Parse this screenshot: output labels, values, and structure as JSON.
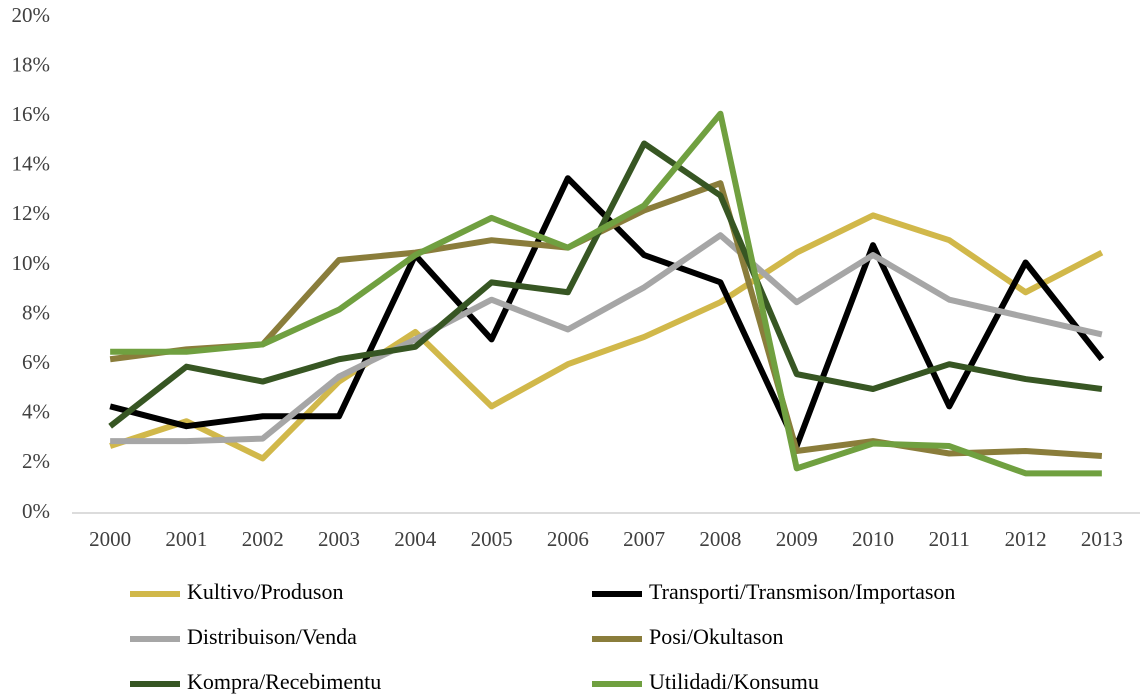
{
  "chart_data": {
    "type": "line",
    "categories": [
      "2000",
      "2001",
      "2002",
      "2003",
      "2004",
      "2005",
      "2006",
      "2007",
      "2008",
      "2009",
      "2010",
      "2011",
      "2012",
      "2013"
    ],
    "series": [
      {
        "name": "Kultivo/Produson",
        "color": "#d1b84a",
        "values": [
          2.7,
          3.7,
          2.2,
          5.3,
          7.3,
          4.3,
          6.0,
          7.1,
          8.5,
          10.5,
          12.0,
          11.0,
          8.9,
          10.5
        ]
      },
      {
        "name": "Transporti/Transmison/Importason",
        "color": "#000000",
        "values": [
          4.3,
          3.5,
          3.9,
          3.9,
          10.4,
          7.0,
          13.5,
          10.4,
          9.3,
          2.7,
          10.8,
          4.3,
          10.1,
          6.2
        ]
      },
      {
        "name": "Distribuison/Venda",
        "color": "#a6a6a6",
        "values": [
          2.9,
          2.9,
          3.0,
          5.5,
          7.0,
          8.6,
          7.4,
          9.1,
          11.2,
          8.5,
          10.4,
          8.6,
          7.9,
          7.2
        ]
      },
      {
        "name": "Posi/Okultason",
        "color": "#8a7d3b",
        "values": [
          6.2,
          6.6,
          6.8,
          10.2,
          10.5,
          11.0,
          10.7,
          12.2,
          13.3,
          2.5,
          2.9,
          2.4,
          2.5,
          2.3
        ]
      },
      {
        "name": "Kompra/Recebimentu",
        "color": "#375623",
        "values": [
          3.5,
          5.9,
          5.3,
          6.2,
          6.7,
          9.3,
          8.9,
          14.9,
          12.8,
          5.6,
          5.0,
          6.0,
          5.4,
          5.0
        ]
      },
      {
        "name": "Utilidadi/Konsumu",
        "color": "#70a040",
        "values": [
          6.5,
          6.5,
          6.8,
          8.2,
          10.4,
          11.9,
          10.7,
          12.4,
          16.1,
          1.8,
          2.8,
          2.7,
          1.6,
          1.6
        ]
      }
    ],
    "ylim": [
      0,
      20
    ],
    "yticks": [
      {
        "value": 0,
        "label": "0%"
      },
      {
        "value": 2,
        "label": "2%"
      },
      {
        "value": 4,
        "label": "4%"
      },
      {
        "value": 6,
        "label": "6%"
      },
      {
        "value": 8,
        "label": "8%"
      },
      {
        "value": 10,
        "label": "10%"
      },
      {
        "value": 12,
        "label": "12%"
      },
      {
        "value": 14,
        "label": "14%"
      },
      {
        "value": 16,
        "label": "16%"
      },
      {
        "value": 18,
        "label": "18%"
      },
      {
        "value": 20,
        "label": "20%"
      }
    ],
    "grid": false,
    "legend": "bottom"
  }
}
